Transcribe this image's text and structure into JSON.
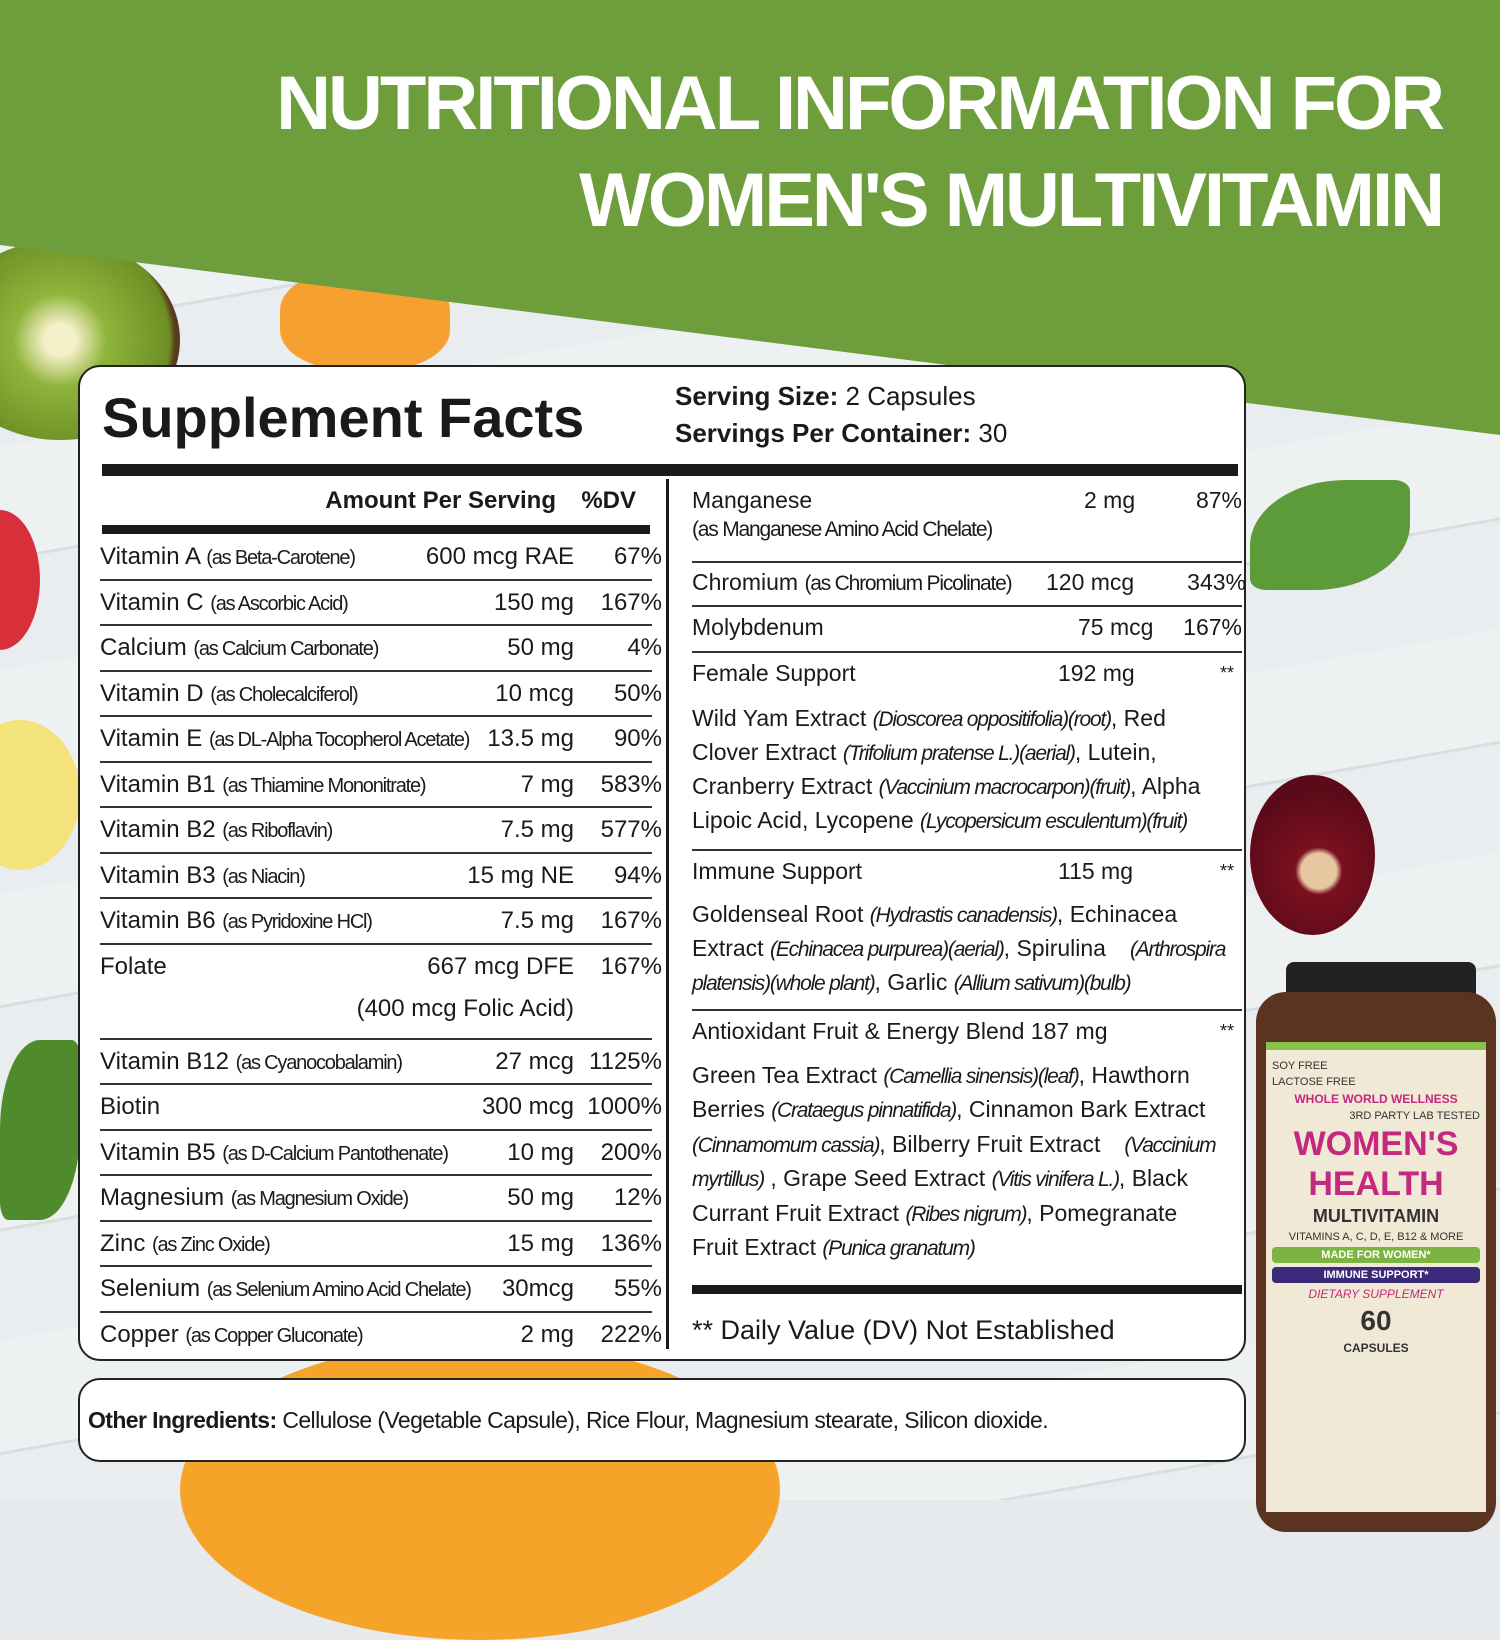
{
  "header": {
    "line1": "NUTRITIONAL INFORMATION FOR",
    "line2": "WOMEN'S MULTIVITAMIN"
  },
  "colors": {
    "green": "#6e9e3c",
    "bottle_magenta": "#c4287f"
  },
  "facts": {
    "title": "Supplement Facts",
    "serving_size_label": "Serving Size:",
    "serving_size": " 2 Capsules",
    "servings_label": "Servings Per Container:",
    "servings": " 30",
    "amount_header": "Amount Per Serving",
    "dv_header": "%DV",
    "left_rows": [
      {
        "name": "Vitamin A",
        "source": "(as Beta-Carotene)",
        "amount": "600 mcg RAE",
        "dv": "67%"
      },
      {
        "name": "Vitamin C",
        "source": "(as Ascorbic Acid)",
        "amount": "150 mg",
        "dv": "167%"
      },
      {
        "name": "Calcium",
        "source": "(as Calcium Carbonate)",
        "amount": "50 mg",
        "dv": "4%"
      },
      {
        "name": "Vitamin D",
        "source": "(as Cholecalciferol)",
        "amount": "10 mcg",
        "dv": "50%"
      },
      {
        "name": "Vitamin E",
        "source": "(as DL-Alpha Tocopherol Acetate)",
        "amount": "13.5 mg",
        "dv": "90%"
      },
      {
        "name": "Vitamin B1",
        "source": "(as Thiamine Mononitrate)",
        "amount": "7 mg",
        "dv": "583%"
      },
      {
        "name": "Vitamin B2",
        "source": "(as Riboflavin)",
        "amount": "7.5 mg",
        "dv": "577%"
      },
      {
        "name": "Vitamin B3",
        "source": "(as Niacin)",
        "amount": "15 mg NE",
        "dv": "94%"
      },
      {
        "name": "Vitamin B6",
        "source": "(as Pyridoxine HCl)",
        "amount": "7.5 mg",
        "dv": "167%"
      },
      {
        "name": "Folate",
        "source": "",
        "amount": "667 mcg DFE",
        "dv": "167%",
        "sub": "(400 mcg Folic Acid)"
      },
      {
        "name": "Vitamin B12",
        "source": "(as Cyanocobalamin)",
        "amount": "27 mcg",
        "dv": "1125%"
      },
      {
        "name": "Biotin",
        "source": "",
        "amount": "300 mcg",
        "dv": "1000%"
      },
      {
        "name": "Vitamin B5",
        "source": "(as D-Calcium Pantothenate)",
        "amount": "10 mg",
        "dv": "200%"
      },
      {
        "name": "Magnesium",
        "source": "(as Magnesium Oxide)",
        "amount": "50 mg",
        "dv": "12%"
      },
      {
        "name": "Zinc",
        "source": "(as Zinc Oxide)",
        "amount": "15 mg",
        "dv": "136%"
      },
      {
        "name": "Selenium",
        "source": "(as Selenium Amino Acid Chelate)",
        "amount": "30mcg",
        "dv": "55%"
      },
      {
        "name": "Copper",
        "source": "(as Copper Gluconate)",
        "amount": "2 mg",
        "dv": "222%"
      }
    ],
    "manganese": {
      "name": "Manganese",
      "source": "(as Manganese Amino Acid Chelate)",
      "amount": "2 mg",
      "dv": "87%"
    },
    "chromium": {
      "name": "Chromium",
      "source": "(as Chromium Picolinate)",
      "amount": "120 mcg",
      "dv": "343%"
    },
    "molybdenum": {
      "name": "Molybdenum",
      "amount": "75 mcg",
      "dv": "167%"
    },
    "female": {
      "name": "Female Support",
      "amount": "192 mg",
      "dv": "**",
      "l1a": "Wild Yam Extract ",
      "l1b": "(Dioscorea oppositifolia)(root)",
      "l1c": ", Red",
      "l2a": "Clover Extract ",
      "l2b": "(Trifolium pratense L.)(aerial)",
      "l2c": ", Lutein,",
      "l3a": "Cranberry Extract ",
      "l3b": "(Vaccinium macrocarpon)(fruit)",
      "l3c": ", Alpha",
      "l4a": "Lipoic Acid, Lycopene ",
      "l4b": "(Lycopersicum esculentum)(fruit)"
    },
    "immune": {
      "name": "Immune Support",
      "amount": "115 mg",
      "dv": "**",
      "l1a": "Goldenseal Root ",
      "l1b": "(Hydrastis canadensis)",
      "l1c": ", Echinacea",
      "l2a": "Extract ",
      "l2b": "(Echinacea purpurea)(aerial)",
      "l2c": ", Spirulina",
      "l2d": "(Arthrospira",
      "l3a": "platensis)(whole plant)",
      "l3b": ", Garlic ",
      "l3c": "(Allium sativum)(bulb)"
    },
    "antiox": {
      "name": "Antioxidant Fruit & Energy Blend 187 mg",
      "dv": "**",
      "l1a": "Green Tea Extract ",
      "l1b": "(Camellia sinensis)(leaf)",
      "l1c": ", Hawthorn",
      "l2a": "Berries ",
      "l2b": "(Crataegus pinnatifida)",
      "l2c": ", Cinnamon Bark Extract",
      "l3a": "(Cinnamomum cassia)",
      "l3b": ", Bilberry Fruit Extract",
      "l3c": "(Vaccinium",
      "l4a": "myrtillus)",
      "l4b": " , Grape Seed Extract ",
      "l4c": "(Vitis vinifera L.)",
      "l4d": ", Black",
      "l5a": "Currant Fruit Extract ",
      "l5b": "(Ribes nigrum)",
      "l5c": ", Pomegranate",
      "l6a": "Fruit Extract ",
      "l6b": "(Punica granatum)"
    },
    "footnote": "** Daily Value (DV) Not Established"
  },
  "other": {
    "label": "Other Ingredients:",
    "text": " Cellulose (Vegetable Capsule), Rice Flour, Magnesium stearate, Silicon dioxide."
  },
  "bottle": {
    "brand": "WHOLE WORLD WELLNESS",
    "name1": "WOMEN'S",
    "name2": "HEALTH",
    "type": "MULTIVITAMIN",
    "vitamins": "VITAMINS A, C, D, E, B12 & MORE",
    "soy": "SOY FREE",
    "lactose": "LACTOSE FREE",
    "lab": "3RD PARTY LAB TESTED",
    "badge1": "MADE FOR WOMEN*",
    "badge2": "IMMUNE SUPPORT*",
    "dietary": "DIETARY SUPPLEMENT",
    "count": "60",
    "caps": "CAPSULES"
  }
}
